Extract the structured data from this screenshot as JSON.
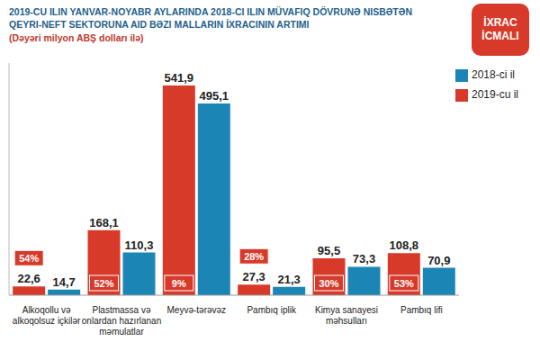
{
  "chart_data": {
    "type": "bar",
    "title": "2019-CU ILIN YANVAR-NOYABR AYLARINDA 2018-CI ILIN MÜVAFIQ DÖVRUNƏ NISBƏTƏN QEYRI-NEFT SEKTORUNA AID BƏZI MALLARIN İXRACININ ARTIMI",
    "subtitle": "(Dəyəri milyon ABŞ dolları ilə)",
    "badge": "İXRAC İCMALI",
    "categories": [
      "Alkoqollu və alkoqolsuz içkilər",
      "Plastmassa və onlardan hazırlanan məmulatlar",
      "Meyvə-tərəvəz",
      "Pambıq iplik",
      "Kimya sanayesi məhsulları",
      "Pambıq lifi"
    ],
    "series": [
      {
        "name": "2019-cu il",
        "color": "#d83a2a",
        "values": [
          22.6,
          168.1,
          541.9,
          27.3,
          95.5,
          108.8
        ],
        "value_labels": [
          "22,6",
          "168,1",
          "541,9",
          "27,3",
          "95,5",
          "108,8"
        ]
      },
      {
        "name": "2018-ci il",
        "color": "#1b86b5",
        "values": [
          14.7,
          110.3,
          495.1,
          21.3,
          73.3,
          70.9
        ],
        "value_labels": [
          "14,7",
          "110,3",
          "495,1",
          "21,3",
          "73,3",
          "70,9"
        ]
      }
    ],
    "annotations": [
      "54%",
      "52%",
      "9%",
      "28%",
      "30%",
      "53%"
    ],
    "ylim": [
      0,
      600
    ],
    "data_labels": true,
    "tick_labels": "x",
    "legend": "upper-right",
    "grid": false
  }
}
